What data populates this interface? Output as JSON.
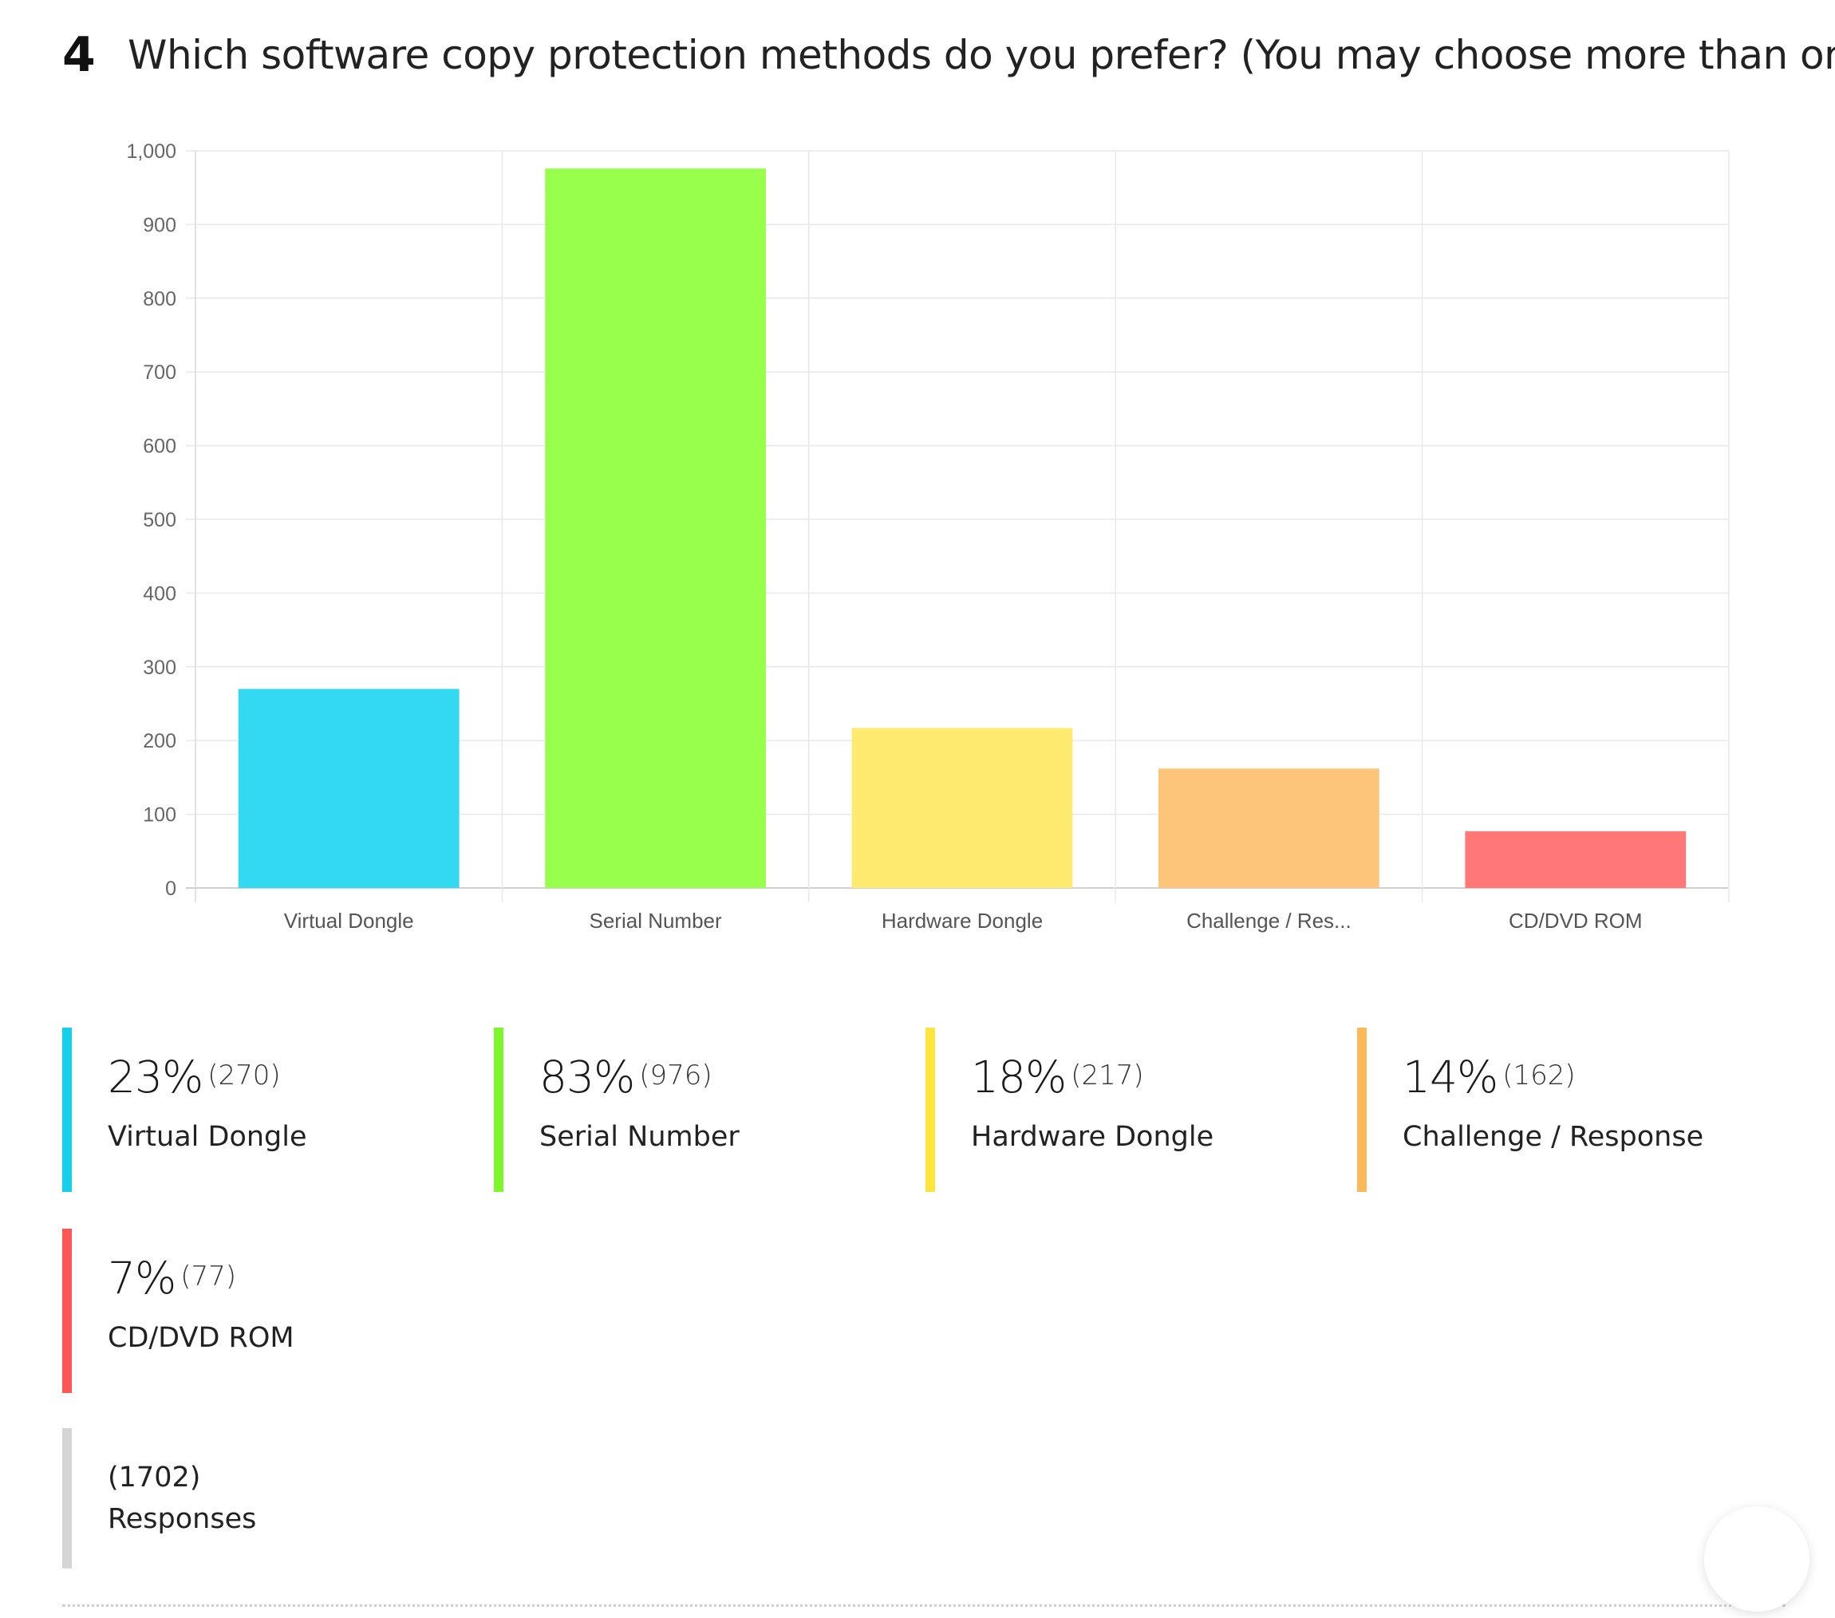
{
  "question": {
    "number": "4",
    "title": "Which software copy protection methods do you prefer? (You may choose more than one)"
  },
  "chart_data": {
    "type": "bar",
    "categories": [
      "Virtual Dongle",
      "Serial Number",
      "Hardware Dongle",
      "Challenge / Res...",
      "CD/DVD ROM"
    ],
    "values": [
      270,
      976,
      217,
      162,
      77
    ],
    "colors": [
      "#33d9f0",
      "#99ff4d",
      "#fdea6e",
      "#fdc57a",
      "#ff7777"
    ],
    "ylim": [
      0,
      1000
    ],
    "yticks": [
      "0",
      "100",
      "200",
      "300",
      "400",
      "500",
      "600",
      "700",
      "800",
      "900",
      "1,000"
    ],
    "grid": true
  },
  "legend": [
    {
      "percent": "23%",
      "count": "(270)",
      "label": "Virtual Dongle",
      "color": "#16d0eb"
    },
    {
      "percent": "83%",
      "count": "(976)",
      "label": "Serial Number",
      "color": "#7cf72b"
    },
    {
      "percent": "18%",
      "count": "(217)",
      "label": "Hardware Dongle",
      "color": "#fde43f"
    },
    {
      "percent": "14%",
      "count": "(162)",
      "label": "Challenge / Response",
      "color": "#fdb85a"
    },
    {
      "percent": "7%",
      "count": "(77)",
      "label": "CD/DVD ROM",
      "color": "#fd5656"
    }
  ],
  "responses": {
    "count": "(1702)",
    "label": "Responses",
    "color": "#d5d5d5"
  }
}
